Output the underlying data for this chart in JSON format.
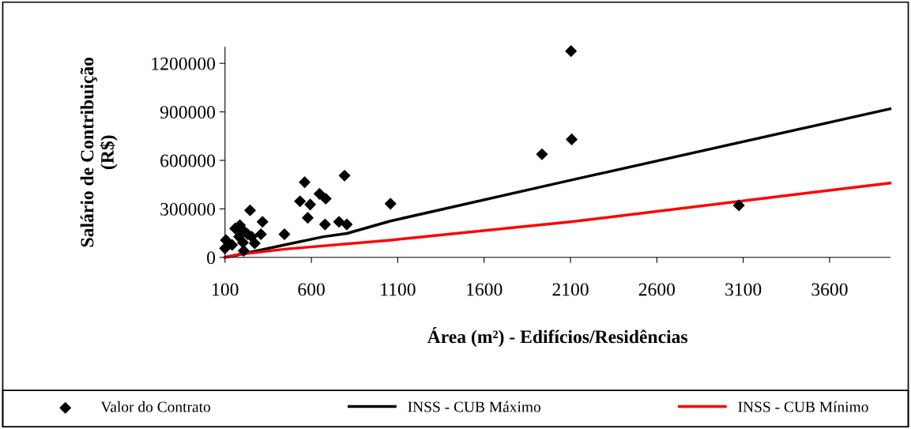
{
  "chart_data": {
    "type": "scatter",
    "xlabel": "Área (m²) - Edifícios/Residências",
    "ylabel": "Salário de Contribuição\n(R$)",
    "xlim": [
      100,
      3950
    ],
    "xticks": [
      100,
      600,
      1100,
      1600,
      2100,
      2600,
      3100,
      3600
    ],
    "ylim": [
      0,
      1300000
    ],
    "yticks": [
      0,
      300000,
      600000,
      900000,
      1200000
    ],
    "grid": false,
    "legend": "bottom",
    "series": [
      {
        "name": "Valor do Contrato",
        "marker": "diamond",
        "color": "#000000",
        "x": [
          105,
          100,
          141,
          159,
          186,
          204,
          181,
          204,
          208,
          231,
          245,
          254,
          272,
          308,
          317,
          444,
          534,
          561,
          593,
          579,
          647,
          683,
          679,
          760,
          805,
          792,
          1058,
          1935,
          2103,
          2107,
          3075
        ],
        "values": [
          107000,
          56000,
          77000,
          179000,
          199000,
          169000,
          128000,
          92000,
          41000,
          143000,
          291000,
          128000,
          87000,
          143000,
          220000,
          143000,
          347000,
          465000,
          327000,
          245000,
          393000,
          363000,
          204000,
          220000,
          204000,
          506000,
          332000,
          638000,
          1276000,
          730000,
          322000
        ]
      },
      {
        "name": "INSS - CUB Máximo",
        "type": "line",
        "color": "#000000",
        "x": [
          100,
          172,
          444,
          670,
          805,
          1058,
          2100,
          3950
        ],
        "values": [
          0,
          15000,
          77000,
          128000,
          148000,
          225000,
          477000,
          919000
        ]
      },
      {
        "name": "INSS - CUB Mínimo",
        "type": "line",
        "color": "#ff0000",
        "x": [
          100,
          172,
          444,
          1058,
          2100,
          3950
        ],
        "values": [
          0,
          17000,
          51000,
          107000,
          220000,
          460000
        ]
      }
    ]
  }
}
